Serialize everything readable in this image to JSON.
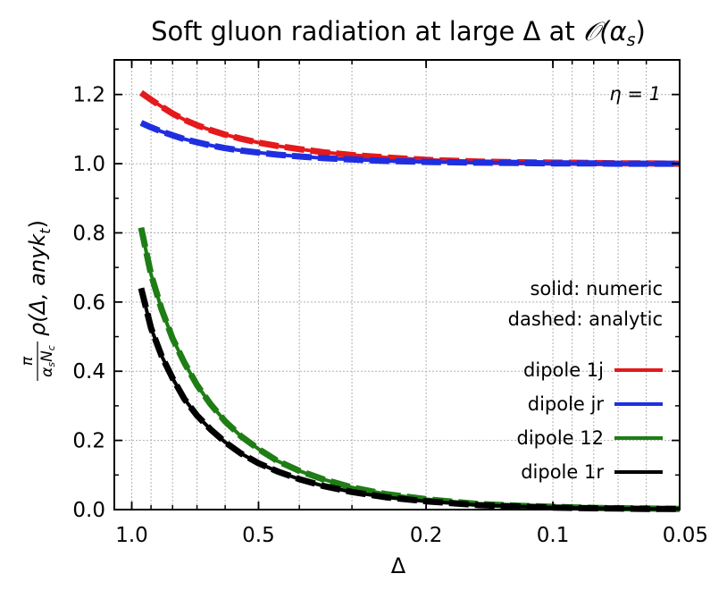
{
  "chart_data": {
    "type": "line",
    "title": "Soft gluon radiation at large Δ at ",
    "title_math": "𝒪(α",
    "title_math_sub": "s",
    "title_math_close": ")",
    "xlabel": "Δ",
    "ylabel": {
      "frac_num": "π",
      "frac_den_a": "α",
      "frac_den_a_sub": "s",
      "frac_den_b": "N",
      "frac_den_b_sub": "c",
      "body": "ρ(Δ, any",
      "k": "k",
      "k_sub": "t",
      "close": ")"
    },
    "x_scale": "log, reversed",
    "xlim": [
      1.1,
      0.05
    ],
    "ylim": [
      0.0,
      1.3
    ],
    "x_ticks": [
      1.0,
      0.5,
      0.2,
      0.1,
      0.05
    ],
    "x_tick_labels": [
      "1.0",
      "0.5",
      "0.2",
      "0.1",
      "0.05"
    ],
    "y_ticks": [
      0.0,
      0.2,
      0.4,
      0.6,
      0.8,
      1.0,
      1.2
    ],
    "y_tick_labels": [
      "0.0",
      "0.2",
      "0.4",
      "0.6",
      "0.8",
      "1.0",
      "1.2"
    ],
    "grid": true,
    "annotation_eta": "η = 1",
    "annotation_style_1": "solid: numeric",
    "annotation_style_2": "dashed: analytic",
    "legend_position": "lower-right",
    "x": [
      0.95,
      0.9,
      0.85,
      0.8,
      0.75,
      0.7,
      0.65,
      0.6,
      0.55,
      0.5,
      0.45,
      0.4,
      0.35,
      0.3,
      0.25,
      0.2,
      0.15,
      0.12,
      0.1,
      0.08,
      0.07,
      0.06,
      0.05
    ],
    "series": [
      {
        "name": "dipole 1j",
        "color": "#e41a1c",
        "values": [
          1.205,
          1.185,
          1.165,
          1.145,
          1.127,
          1.111,
          1.097,
          1.084,
          1.072,
          1.061,
          1.051,
          1.042,
          1.033,
          1.025,
          1.018,
          1.011,
          1.006,
          1.004,
          1.003,
          1.002,
          1.001,
          1.001,
          1.0
        ]
      },
      {
        "name": "dipole jr",
        "color": "#1f2fe0",
        "values": [
          1.118,
          1.105,
          1.093,
          1.082,
          1.071,
          1.062,
          1.053,
          1.045,
          1.038,
          1.032,
          1.026,
          1.021,
          1.016,
          1.012,
          1.008,
          1.005,
          1.003,
          1.002,
          1.001,
          1.001,
          1.0,
          1.0,
          1.0
        ]
      },
      {
        "name": "dipole 12",
        "color": "#1e7d14",
        "values": [
          0.815,
          0.68,
          0.58,
          0.495,
          0.425,
          0.36,
          0.305,
          0.255,
          0.212,
          0.175,
          0.14,
          0.112,
          0.087,
          0.064,
          0.045,
          0.03,
          0.016,
          0.011,
          0.008,
          0.005,
          0.004,
          0.003,
          0.002
        ]
      },
      {
        "name": "dipole 1r",
        "color": "#000000",
        "values": [
          0.64,
          0.525,
          0.445,
          0.38,
          0.32,
          0.272,
          0.232,
          0.195,
          0.162,
          0.134,
          0.11,
          0.088,
          0.068,
          0.051,
          0.036,
          0.024,
          0.013,
          0.009,
          0.006,
          0.004,
          0.003,
          0.002,
          0.002
        ]
      }
    ]
  }
}
